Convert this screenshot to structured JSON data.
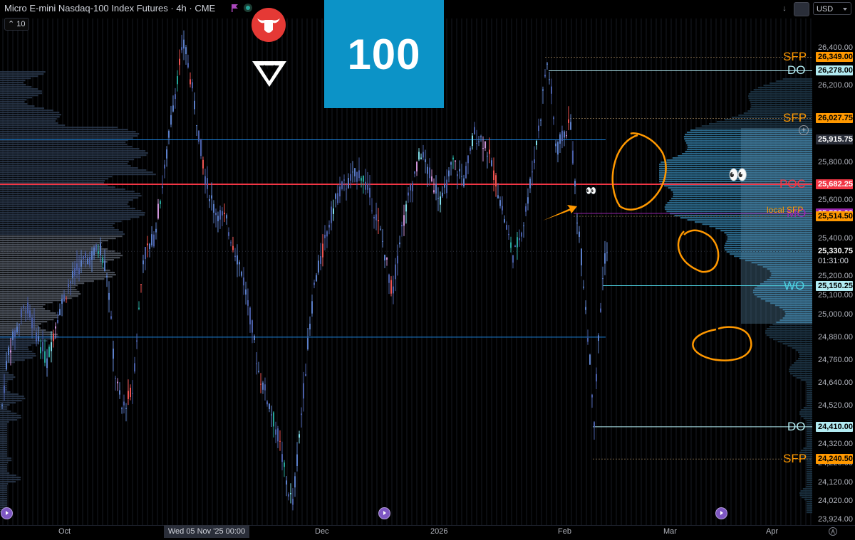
{
  "header": {
    "symbol_title": "Micro E-mini Nasdaq-100 Index Futures · 4h · CME",
    "interval_value": "10",
    "brand_number": "100"
  },
  "toolbar": {
    "arrow_label": "↓",
    "currency": "USD"
  },
  "price_axis": {
    "min": 23924,
    "max": 26500,
    "ticks": [
      "26,400.00",
      "26,200.00",
      "25,800.00",
      "25,600.00",
      "25,400.00",
      "25,200.00",
      "25,100.00",
      "25,000.00",
      "24,880.00",
      "24,760.00",
      "24,640.00",
      "24,520.00",
      "24,320.00",
      "24,220.00",
      "24,120.00",
      "24,020.00",
      "23,924.00"
    ],
    "tick_values": [
      26400,
      26200,
      25800,
      25600,
      25400,
      25200,
      25100,
      25000,
      24880,
      24760,
      24640,
      24520,
      24320,
      24220,
      24120,
      24020,
      23924
    ]
  },
  "price_labels": [
    {
      "text": "26,349.00",
      "value": 26349,
      "bg": "#ff9800",
      "fg": "#000000"
    },
    {
      "text": "26,278.00",
      "value": 26278,
      "bg": "#b2ebf2",
      "fg": "#000000"
    },
    {
      "text": "26,027.75",
      "value": 26027.75,
      "bg": "#ff9800",
      "fg": "#000000"
    },
    {
      "text": "25,915.75",
      "value": 25915.75,
      "bg": "#2a2e39",
      "fg": "#ffffff"
    },
    {
      "text": "25,682.25",
      "value": 25682.25,
      "bg": "#f23645",
      "fg": "#ffffff"
    },
    {
      "text": "25,530.00",
      "value": 25530,
      "bg": "#9c27b0",
      "fg": "#ffffff"
    },
    {
      "text": "25,514.50",
      "value": 25514.5,
      "bg": "#ff9800",
      "fg": "#000000"
    },
    {
      "text": "25,330.75",
      "value": 25330.75,
      "bg": "#000000",
      "fg": "#ffffff"
    },
    {
      "text": "25,150.25",
      "value": 25150.25,
      "bg": "#b2ebf2",
      "fg": "#000000"
    },
    {
      "text": "24,410.00",
      "value": 24410,
      "bg": "#b2ebf2",
      "fg": "#000000"
    },
    {
      "text": "24,240.50",
      "value": 24240.5,
      "bg": "#ff9800",
      "fg": "#000000"
    }
  ],
  "countdown": "01:31:00",
  "level_tags": [
    {
      "text": "SFP",
      "value": 26349,
      "color": "#ff9800"
    },
    {
      "text": "DO",
      "value": 26278,
      "color": "#b2ebf2"
    },
    {
      "text": "SFP",
      "value": 26027.75,
      "color": "#ff9800"
    },
    {
      "text": "POC",
      "value": 25682.25,
      "color": "#f23645"
    },
    {
      "text": "MO",
      "value": 25530,
      "color": "#9c27b0"
    },
    {
      "text": "WO",
      "value": 25150.25,
      "color": "#4dd0e1"
    },
    {
      "text": "DO",
      "value": 24410,
      "color": "#b2ebf2"
    },
    {
      "text": "SFP",
      "value": 24240.5,
      "color": "#ff9800"
    }
  ],
  "local_sfp_label": "local SFP",
  "eyes_small": "👀",
  "eyes_large": "👀",
  "time_axis": {
    "labels": [
      "Oct",
      "Dec",
      "2026",
      "Feb",
      "Mar",
      "Apr"
    ],
    "crosshair_time": "Wed 05 Nov '25   00:00",
    "auto_label": "A"
  },
  "crosshair_plus": "+",
  "chart_data": {
    "type": "candlestick",
    "title": "Micro E-mini Nasdaq-100 Index Futures · 4h · CME",
    "ylim": [
      23924,
      26500
    ],
    "x_labels": [
      "Oct",
      "Dec",
      "2026",
      "Feb",
      "Mar",
      "Apr"
    ],
    "levels": [
      {
        "name": "SFP",
        "price": 26349
      },
      {
        "name": "DO",
        "price": 26278
      },
      {
        "name": "SFP",
        "price": 26027.75
      },
      {
        "name": "POC",
        "price": 25682.25
      },
      {
        "name": "MO",
        "price": 25530
      },
      {
        "name": "local SFP",
        "price": 25514.5
      },
      {
        "name": "WO",
        "price": 25150.25
      },
      {
        "name": "DO",
        "price": 24410
      },
      {
        "name": "SFP",
        "price": 24240.5
      }
    ],
    "last_price": 25330.75,
    "price_path": [
      [
        0,
        24450
      ],
      [
        10,
        24800
      ],
      [
        20,
        24900
      ],
      [
        35,
        25050
      ],
      [
        50,
        24900
      ],
      [
        65,
        24750
      ],
      [
        80,
        25000
      ],
      [
        95,
        25150
      ],
      [
        110,
        25250
      ],
      [
        125,
        25300
      ],
      [
        140,
        25350
      ],
      [
        150,
        25200
      ],
      [
        160,
        24700
      ],
      [
        170,
        24500
      ],
      [
        185,
        24600
      ],
      [
        200,
        25300
      ],
      [
        215,
        25400
      ],
      [
        230,
        25750
      ],
      [
        240,
        26050
      ],
      [
        250,
        26300
      ],
      [
        258,
        26420
      ],
      [
        268,
        26200
      ],
      [
        278,
        25950
      ],
      [
        288,
        25700
      ],
      [
        300,
        25550
      ],
      [
        315,
        25500
      ],
      [
        328,
        25350
      ],
      [
        340,
        25200
      ],
      [
        352,
        24950
      ],
      [
        362,
        24700
      ],
      [
        375,
        24550
      ],
      [
        390,
        24350
      ],
      [
        402,
        24100
      ],
      [
        410,
        24000
      ],
      [
        420,
        24400
      ],
      [
        430,
        24800
      ],
      [
        440,
        25150
      ],
      [
        450,
        25300
      ],
      [
        462,
        25500
      ],
      [
        475,
        25650
      ],
      [
        490,
        25700
      ],
      [
        505,
        25750
      ],
      [
        520,
        25600
      ],
      [
        535,
        25400
      ],
      [
        550,
        25100
      ],
      [
        560,
        25400
      ],
      [
        575,
        25650
      ],
      [
        590,
        25850
      ],
      [
        605,
        25700
      ],
      [
        620,
        25600
      ],
      [
        635,
        25800
      ],
      [
        650,
        25700
      ],
      [
        665,
        25950
      ],
      [
        680,
        25900
      ],
      [
        695,
        25700
      ],
      [
        710,
        25450
      ],
      [
        720,
        25300
      ],
      [
        735,
        25500
      ],
      [
        748,
        25800
      ],
      [
        758,
        26050
      ],
      [
        766,
        26330
      ],
      [
        772,
        26200
      ],
      [
        780,
        25850
      ],
      [
        790,
        25950
      ],
      [
        800,
        26000
      ],
      [
        808,
        25550
      ],
      [
        815,
        25300
      ],
      [
        822,
        25000
      ],
      [
        828,
        24700
      ],
      [
        833,
        24450
      ],
      [
        838,
        24800
      ],
      [
        843,
        25100
      ],
      [
        848,
        25300
      ],
      [
        852,
        25330
      ]
    ]
  }
}
